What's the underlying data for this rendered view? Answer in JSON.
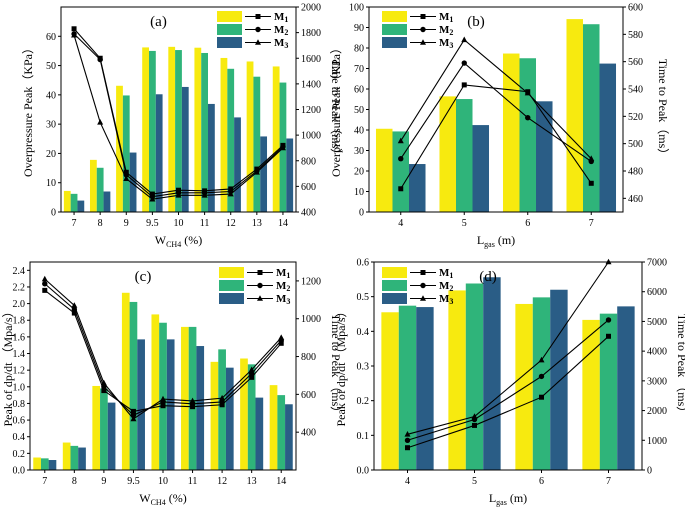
{
  "colors": {
    "M1": "#f7ea0f",
    "M2": "#2fb47a",
    "M3": "#2a5d86"
  },
  "chart_data": [
    {
      "panel": "(a)",
      "type": "bar",
      "xlabel": "W",
      "xlabel_sub": "CH4",
      "xlabel_unit": " (%)",
      "categories": [
        "7",
        "8",
        "9",
        "9.5",
        "10",
        "11",
        "12",
        "13",
        "14"
      ],
      "ylabel": "Overpressure Peak（KPa）",
      "ylim": [
        0,
        70
      ],
      "yticks": [
        0,
        10,
        20,
        30,
        40,
        50,
        60
      ],
      "y2label": "Time to Peak（ms）",
      "y2lim": [
        400,
        2000
      ],
      "y2ticks": [
        400,
        600,
        800,
        1000,
        1200,
        1400,
        1600,
        1800,
        2000
      ],
      "series": [
        {
          "name": "M",
          "sub": "1",
          "marker": "square",
          "values": [
            7.2,
            17.8,
            43.1,
            56.2,
            56.4,
            56.1,
            52.6,
            51.4,
            49.7
          ],
          "time": [
            1830,
            1600,
            710,
            540,
            570,
            565,
            580,
            735,
            920
          ]
        },
        {
          "name": "M",
          "sub": "2",
          "marker": "circle",
          "values": [
            6.2,
            15.1,
            39.8,
            55.0,
            55.3,
            54.3,
            48.9,
            46.2,
            44.2
          ],
          "time": [
            1790,
            1590,
            690,
            520,
            550,
            550,
            560,
            720,
            910
          ]
        },
        {
          "name": "M",
          "sub": "3",
          "marker": "triangle",
          "values": [
            3.9,
            7.0,
            20.3,
            40.2,
            42.7,
            36.9,
            32.3,
            25.8,
            25.1
          ],
          "time": [
            1780,
            1100,
            660,
            500,
            530,
            530,
            540,
            710,
            900
          ]
        }
      ]
    },
    {
      "panel": "(b)",
      "type": "bar",
      "xlabel": "L",
      "xlabel_sub": "gas",
      "xlabel_unit": " (m)",
      "categories": [
        "4",
        "5",
        "6",
        "7"
      ],
      "ylabel": "Overpressure Peak（KPa）",
      "ylim": [
        0,
        100
      ],
      "yticks": [
        0,
        10,
        20,
        30,
        40,
        50,
        60,
        70,
        80,
        90,
        100
      ],
      "y2label": "Time to Peak（ms）",
      "y2lim": [
        450,
        600
      ],
      "y2ticks": [
        460,
        480,
        500,
        520,
        540,
        560,
        580,
        600
      ],
      "series": [
        {
          "name": "M",
          "sub": "1",
          "marker": "square",
          "values": [
            40.6,
            56.4,
            77.3,
            94.1
          ],
          "time": [
            467,
            543,
            538,
            471
          ]
        },
        {
          "name": "M",
          "sub": "2",
          "marker": "circle",
          "values": [
            39.3,
            55.1,
            75.0,
            91.6
          ],
          "time": [
            489,
            559,
            519,
            487
          ]
        },
        {
          "name": "M",
          "sub": "3",
          "marker": "triangle",
          "values": [
            23.4,
            42.4,
            54.0,
            72.4
          ],
          "time": [
            502,
            576,
            537,
            489
          ]
        }
      ]
    },
    {
      "panel": "(c)",
      "type": "bar",
      "xlabel": "W",
      "xlabel_sub": "CH4",
      "xlabel_unit": " (%)",
      "categories": [
        "7",
        "8",
        "9",
        "9.5",
        "10",
        "11",
        "12",
        "13",
        "14"
      ],
      "ylabel": "Peak of dp/dt （Mpa/s）",
      "ylim": [
        0,
        2.5
      ],
      "yticks": [
        0.0,
        0.2,
        0.4,
        0.6,
        0.8,
        1.0,
        1.2,
        1.4,
        1.6,
        1.8,
        2.0,
        2.2,
        2.4
      ],
      "y2label": "Time to Peak （ms）",
      "y2lim": [
        200,
        1300
      ],
      "y2ticks": [
        400,
        600,
        800,
        1000,
        1200
      ],
      "series": [
        {
          "name": "M",
          "sub": "1",
          "marker": "square",
          "values": [
            0.15,
            0.33,
            1.01,
            2.13,
            1.87,
            1.72,
            1.3,
            1.34,
            1.02
          ],
          "time": [
            1150,
            1030,
            620,
            510,
            540,
            535,
            545,
            690,
            870
          ]
        },
        {
          "name": "M",
          "sub": "2",
          "marker": "circle",
          "values": [
            0.14,
            0.29,
            0.98,
            2.02,
            1.77,
            1.72,
            1.45,
            1.27,
            0.9
          ],
          "time": [
            1185,
            1050,
            640,
            490,
            560,
            550,
            560,
            710,
            885
          ]
        },
        {
          "name": "M",
          "sub": "3",
          "marker": "triangle",
          "values": [
            0.12,
            0.27,
            0.81,
            1.57,
            1.57,
            1.49,
            1.23,
            0.87,
            0.79
          ],
          "time": [
            1210,
            1070,
            660,
            470,
            575,
            565,
            580,
            730,
            900
          ]
        }
      ]
    },
    {
      "panel": "(d)",
      "type": "bar",
      "xlabel": "L",
      "xlabel_sub": "gas",
      "xlabel_unit": " (m)",
      "categories": [
        "4",
        "5",
        "6",
        "7"
      ],
      "ylabel": "Peak of dp/dt （Mpa/s）",
      "ylim": [
        0,
        0.6
      ],
      "yticks": [
        0.0,
        0.1,
        0.2,
        0.3,
        0.4,
        0.5,
        0.6
      ],
      "y2label": "Time to Peak （ms）",
      "y2lim": [
        0,
        7000
      ],
      "y2ticks": [
        0,
        1000,
        2000,
        3000,
        4000,
        5000,
        6000,
        7000
      ],
      "series": [
        {
          "name": "M",
          "sub": "1",
          "marker": "square",
          "values": [
            0.455,
            0.518,
            0.479,
            0.433
          ],
          "time": [
            750,
            1500,
            2450,
            4500
          ]
        },
        {
          "name": "M",
          "sub": "2",
          "marker": "circle",
          "values": [
            0.474,
            0.538,
            0.498,
            0.451
          ],
          "time": [
            1000,
            1700,
            3150,
            5050
          ]
        },
        {
          "name": "M",
          "sub": "3",
          "marker": "triangle",
          "values": [
            0.47,
            0.556,
            0.52,
            0.472
          ],
          "time": [
            1200,
            1800,
            3700,
            7000
          ]
        }
      ]
    }
  ]
}
